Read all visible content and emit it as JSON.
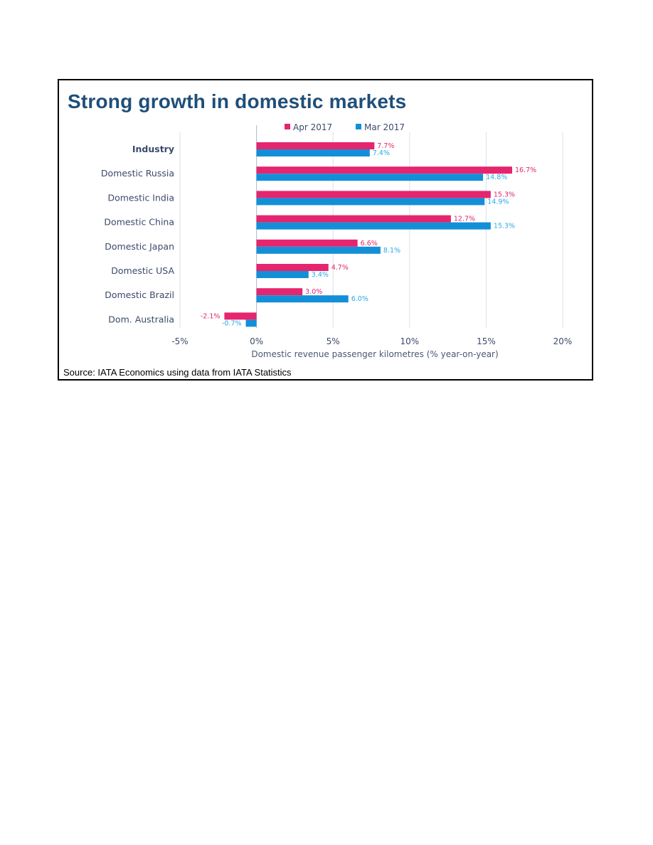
{
  "title": "Strong growth in domestic markets",
  "source": "Source: IATA Economics using data from IATA Statistics",
  "colors": {
    "apr": "#e5256e",
    "mar": "#138fd8",
    "apr_label": "#e5256e",
    "mar_label": "#2aaae6",
    "axis_text": "#3b4a6b",
    "grid": "#d9e0ea",
    "title": "#1f4e79"
  },
  "chart_data": {
    "type": "bar",
    "orientation": "horizontal",
    "title": "Strong growth in domestic markets",
    "xlabel": "Domestic revenue passenger kilometres (% year-on-year)",
    "ylabel": "",
    "categories": [
      "Industry",
      "Domestic Russia",
      "Domestic India",
      "Domestic China",
      "Domestic Japan",
      "Domestic USA",
      "Domestic Brazil",
      "Dom. Australia"
    ],
    "series": [
      {
        "name": "Apr 2017",
        "values": [
          7.7,
          16.7,
          15.3,
          12.7,
          6.6,
          4.7,
          3.0,
          -2.1
        ],
        "labels": [
          "7.7%",
          "16.7%",
          "15.3%",
          "12.7%",
          "6.6%",
          "4.7%",
          "3.0%",
          "-2.1%"
        ]
      },
      {
        "name": "Mar 2017",
        "values": [
          7.4,
          14.8,
          14.9,
          15.3,
          8.1,
          3.4,
          6.0,
          -0.7
        ],
        "labels": [
          "7.4%",
          "14.8%",
          "14.9%",
          "15.3%",
          "8.1%",
          "3.4%",
          "6.0%",
          "-0.7%"
        ]
      }
    ],
    "xlim": [
      -5,
      20
    ],
    "xticks": [
      -5,
      0,
      5,
      10,
      15,
      20
    ],
    "xtick_labels": [
      "-5%",
      "0%",
      "5%",
      "10%",
      "15%",
      "20%"
    ],
    "grid": true,
    "legend_position": "top"
  }
}
